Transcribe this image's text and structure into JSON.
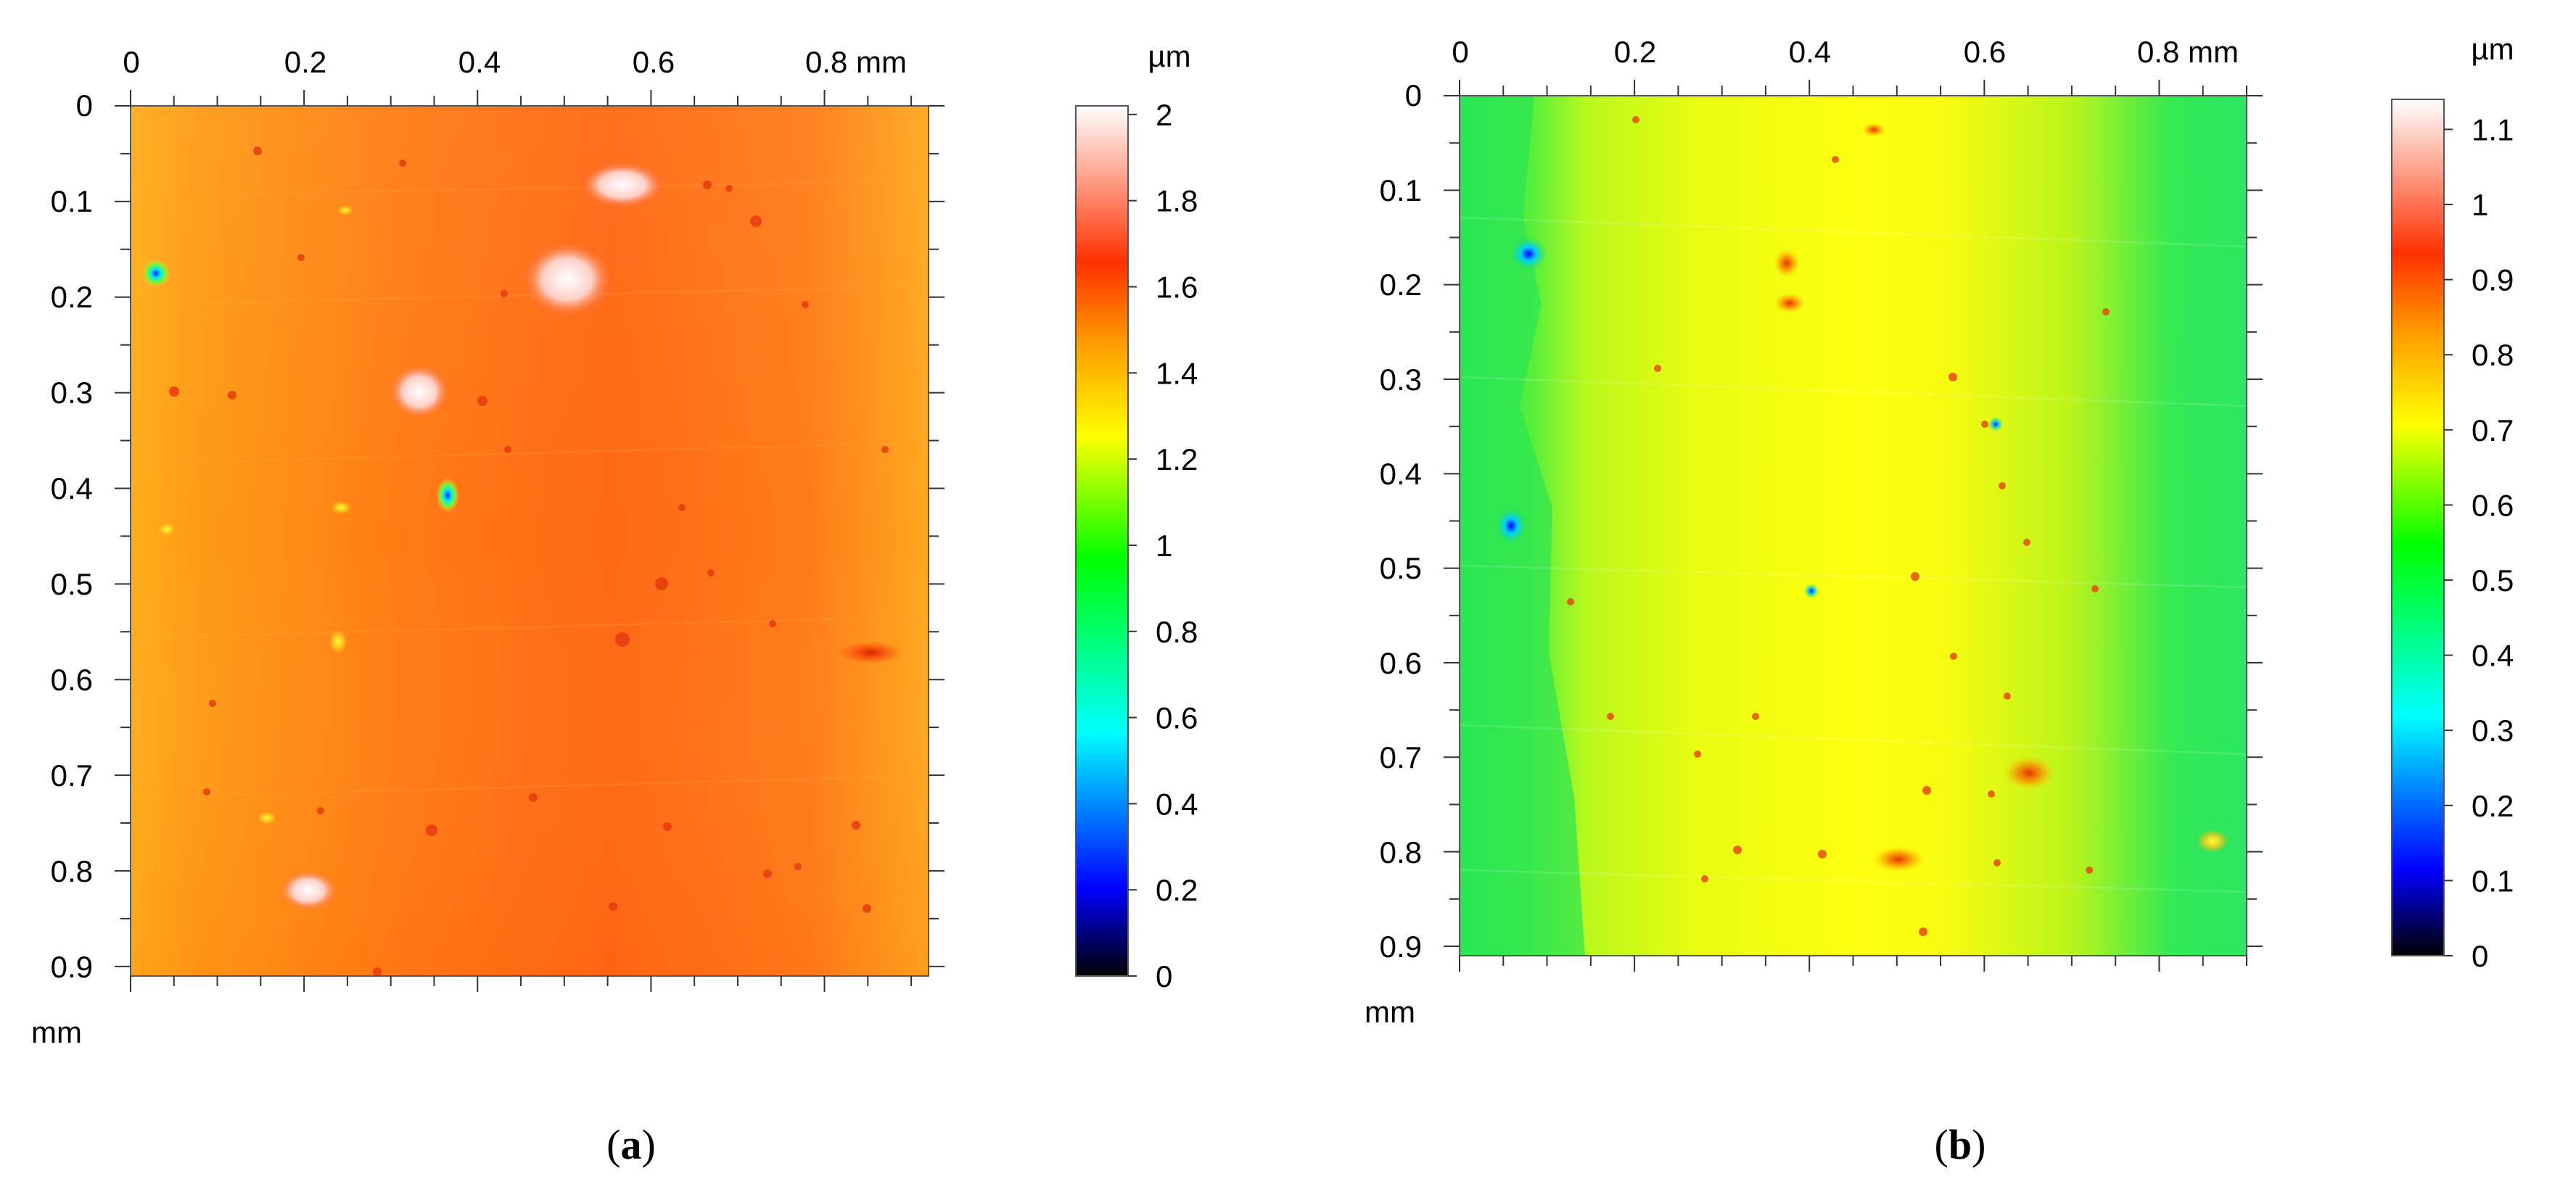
{
  "chart_data": [
    {
      "type": "heatmap",
      "panel_label": "(a)",
      "panel_letter": "a",
      "x_ticks": [
        "0",
        "0.2",
        "0.4",
        "0.6",
        "0.8 mm"
      ],
      "x_tick_values": [
        0,
        0.2,
        0.4,
        0.6,
        0.8
      ],
      "y_ticks": [
        "0",
        "0.1",
        "0.2",
        "0.3",
        "0.4",
        "0.5",
        "0.6",
        "0.7",
        "0.8",
        "0.9"
      ],
      "y_tick_values": [
        0,
        0.1,
        0.2,
        0.3,
        0.4,
        0.5,
        0.6,
        0.7,
        0.8,
        0.9
      ],
      "y_unit": "mm",
      "xlim": [
        0,
        0.92
      ],
      "ylim": [
        0,
        0.91
      ],
      "colorbar": {
        "unit": "µm",
        "ticks": [
          "0",
          "0.2",
          "0.4",
          "0.6",
          "0.8",
          "1",
          "1.2",
          "1.4",
          "1.6",
          "1.8",
          "2"
        ],
        "tick_values": [
          0,
          0.2,
          0.4,
          0.6,
          0.8,
          1.0,
          1.2,
          1.4,
          1.6,
          1.8,
          2.0
        ],
        "range": [
          0,
          2.02
        ],
        "colors": [
          "#000000",
          "#0000ff",
          "#00ffff",
          "#00ff00",
          "#ffff00",
          "#ff7f00",
          "#ff3000",
          "#ffffff"
        ]
      },
      "surface": {
        "base_height": 1.5,
        "description_levels": {
          "left_edge": 1.42,
          "center": 1.55,
          "right_edge": 1.45
        },
        "features": [
          {
            "x": 0.55,
            "y": 0.09,
            "height": 1.95
          },
          {
            "x": 0.5,
            "y": 0.18,
            "height": 2.0
          },
          {
            "x": 0.34,
            "y": 0.3,
            "height": 1.9
          },
          {
            "x": 0.02,
            "y": 0.18,
            "height": 0.5
          },
          {
            "x": 0.36,
            "y": 0.41,
            "height": 0.5
          },
          {
            "x": 0.23,
            "y": 0.56,
            "height": 1.0
          },
          {
            "x": 0.2,
            "y": 0.82,
            "height": 1.9
          },
          {
            "x": 0.83,
            "y": 0.58,
            "height": 1.7
          }
        ]
      }
    },
    {
      "type": "heatmap",
      "panel_label": "(b)",
      "panel_letter": "b",
      "x_ticks": [
        "0",
        "0.2",
        "0.4",
        "0.6",
        "0.8 mm"
      ],
      "x_tick_values": [
        0,
        0.2,
        0.4,
        0.6,
        0.8
      ],
      "y_ticks": [
        "0",
        "0.1",
        "0.2",
        "0.3",
        "0.4",
        "0.5",
        "0.6",
        "0.7",
        "0.8",
        "0.9"
      ],
      "y_tick_values": [
        0,
        0.1,
        0.2,
        0.3,
        0.4,
        0.5,
        0.6,
        0.7,
        0.8,
        0.9
      ],
      "y_unit": "mm",
      "xlim": [
        0,
        0.9
      ],
      "ylim": [
        0,
        0.91
      ],
      "colorbar": {
        "unit": "µm",
        "ticks": [
          "0",
          "0.1",
          "0.2",
          "0.3",
          "0.4",
          "0.5",
          "0.6",
          "0.7",
          "0.8",
          "0.9",
          "1",
          "1.1"
        ],
        "tick_values": [
          0,
          0.1,
          0.2,
          0.3,
          0.4,
          0.5,
          0.6,
          0.7,
          0.8,
          0.9,
          1.0,
          1.1
        ],
        "range": [
          0,
          1.14
        ],
        "colors": [
          "#000000",
          "#0000ff",
          "#00ffff",
          "#00ff00",
          "#ffff00",
          "#ff7f00",
          "#ff3000",
          "#ffffff"
        ]
      },
      "surface": {
        "description_levels": {
          "left_band": 0.52,
          "center_band": 0.7,
          "right_band": 0.52
        },
        "features": [
          {
            "x": 0.08,
            "y": 0.16,
            "height": 0.35
          },
          {
            "x": 0.06,
            "y": 0.45,
            "height": 0.3
          },
          {
            "x": 0.38,
            "y": 0.18,
            "height": 0.9
          },
          {
            "x": 0.48,
            "y": 0.81,
            "height": 0.95
          },
          {
            "x": 0.4,
            "y": 0.52,
            "height": 0.35
          },
          {
            "x": 0.67,
            "y": 0.71,
            "height": 0.9
          },
          {
            "x": 0.61,
            "y": 0.35,
            "height": 0.4
          }
        ]
      }
    }
  ]
}
